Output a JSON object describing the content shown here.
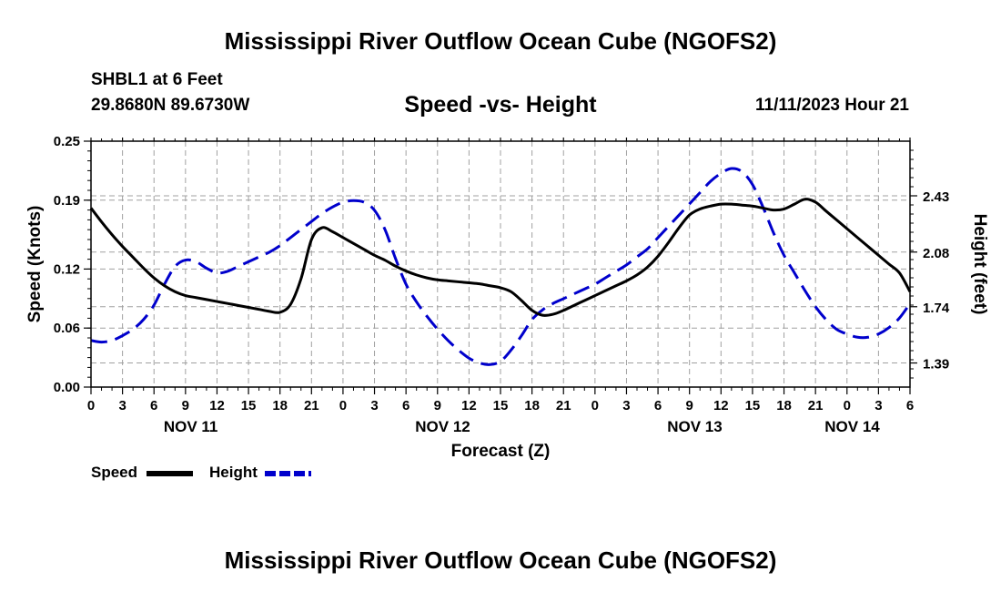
{
  "title": "Mississippi River Outflow Ocean Cube (NGOFS2)",
  "station": "SHBL1 at 6 Feet",
  "coordinates": "29.8680N  89.6730W",
  "subtitle": "Speed -vs- Height",
  "datetime": "11/11/2023 Hour 21",
  "bottom_title": "Mississippi River Outflow Ocean Cube (NGOFS2)",
  "colors": {
    "speed": "#000000",
    "height": "#0000cc",
    "grid": "#a0a0a0"
  },
  "chart_data": {
    "type": "line",
    "xlabel": "Forecast (Z)",
    "ylabel": "Speed (Knots)",
    "y2label": "Height (feet)",
    "xlim": [
      0,
      78
    ],
    "ylim": [
      0,
      0.25
    ],
    "y2lim": [
      1.24,
      2.77
    ],
    "x_tick_labels": [
      "0",
      "3",
      "6",
      "9",
      "12",
      "15",
      "18",
      "21",
      "0",
      "3",
      "6",
      "9",
      "12",
      "15",
      "18",
      "21",
      "0",
      "3",
      "6",
      "9",
      "12",
      "15",
      "18",
      "21",
      "0",
      "3",
      "6"
    ],
    "y_ticks": [
      0.0,
      0.06,
      0.12,
      0.19,
      0.25
    ],
    "y_tick_labels": [
      "0.00",
      "0.06",
      "0.12",
      "0.19",
      "0.25"
    ],
    "y2_ticks": [
      1.39,
      1.74,
      2.08,
      2.43
    ],
    "y2_tick_labels": [
      "1.39",
      "1.74",
      "2.08",
      "2.43"
    ],
    "date_labels": [
      {
        "x": 9.5,
        "label": "NOV 11"
      },
      {
        "x": 33.5,
        "label": "NOV 12"
      },
      {
        "x": 57.5,
        "label": "NOV 13"
      },
      {
        "x": 72.5,
        "label": "NOV 14"
      }
    ],
    "series": [
      {
        "name": "Speed",
        "axis": "left",
        "style": "solid",
        "x": [
          0,
          1,
          2,
          3,
          4,
          5,
          6,
          7,
          8,
          9,
          10,
          11,
          12,
          13,
          14,
          15,
          16,
          17,
          18,
          19,
          20,
          21,
          22,
          23,
          24,
          25,
          26,
          27,
          28,
          29,
          30,
          31,
          32,
          33,
          34,
          35,
          36,
          37,
          38,
          39,
          40,
          41,
          42,
          43,
          44,
          45,
          46,
          47,
          48,
          49,
          50,
          51,
          52,
          53,
          54,
          55,
          56,
          57,
          58,
          59,
          60,
          61,
          62,
          63,
          64,
          65,
          66,
          67,
          68,
          69,
          70,
          71,
          72,
          73,
          74,
          75,
          76,
          77,
          78
        ],
        "values": [
          0.182,
          0.168,
          0.155,
          0.143,
          0.132,
          0.121,
          0.111,
          0.103,
          0.097,
          0.093,
          0.091,
          0.089,
          0.087,
          0.085,
          0.083,
          0.081,
          0.079,
          0.077,
          0.076,
          0.084,
          0.11,
          0.15,
          0.162,
          0.158,
          0.152,
          0.146,
          0.14,
          0.134,
          0.129,
          0.123,
          0.118,
          0.114,
          0.111,
          0.109,
          0.108,
          0.107,
          0.106,
          0.105,
          0.103,
          0.101,
          0.097,
          0.088,
          0.078,
          0.073,
          0.074,
          0.078,
          0.083,
          0.088,
          0.093,
          0.098,
          0.103,
          0.108,
          0.114,
          0.122,
          0.133,
          0.147,
          0.162,
          0.175,
          0.181,
          0.184,
          0.186,
          0.186,
          0.185,
          0.184,
          0.182,
          0.18,
          0.181,
          0.186,
          0.191,
          0.188,
          0.179,
          0.17,
          0.161,
          0.152,
          0.143,
          0.134,
          0.125,
          0.116,
          0.097
        ]
      },
      {
        "name": "Height",
        "axis": "right",
        "style": "dashed",
        "x": [
          0,
          1,
          2,
          3,
          4,
          5,
          6,
          7,
          8,
          9,
          10,
          11,
          12,
          13,
          14,
          15,
          16,
          17,
          18,
          19,
          20,
          21,
          22,
          23,
          24,
          25,
          26,
          27,
          28,
          29,
          30,
          31,
          32,
          33,
          34,
          35,
          36,
          37,
          38,
          39,
          40,
          41,
          42,
          43,
          44,
          45,
          46,
          47,
          48,
          49,
          50,
          51,
          52,
          53,
          54,
          55,
          56,
          57,
          58,
          59,
          60,
          61,
          62,
          63,
          64,
          65,
          66,
          67,
          68,
          69,
          70,
          71,
          72,
          73,
          74,
          75,
          76,
          77,
          78
        ],
        "values": [
          1.53,
          1.52,
          1.53,
          1.56,
          1.6,
          1.66,
          1.75,
          1.88,
          1.99,
          2.03,
          2.02,
          1.98,
          1.95,
          1.96,
          1.99,
          2.02,
          2.05,
          2.08,
          2.12,
          2.17,
          2.22,
          2.27,
          2.32,
          2.36,
          2.39,
          2.4,
          2.39,
          2.34,
          2.22,
          2.04,
          1.88,
          1.77,
          1.68,
          1.6,
          1.53,
          1.47,
          1.42,
          1.39,
          1.38,
          1.4,
          1.47,
          1.56,
          1.66,
          1.72,
          1.76,
          1.79,
          1.82,
          1.85,
          1.88,
          1.92,
          1.96,
          2.0,
          2.05,
          2.1,
          2.17,
          2.24,
          2.31,
          2.38,
          2.45,
          2.52,
          2.57,
          2.6,
          2.58,
          2.5,
          2.36,
          2.2,
          2.06,
          1.95,
          1.84,
          1.74,
          1.66,
          1.6,
          1.57,
          1.55,
          1.55,
          1.57,
          1.61,
          1.67,
          1.76
        ]
      }
    ]
  }
}
